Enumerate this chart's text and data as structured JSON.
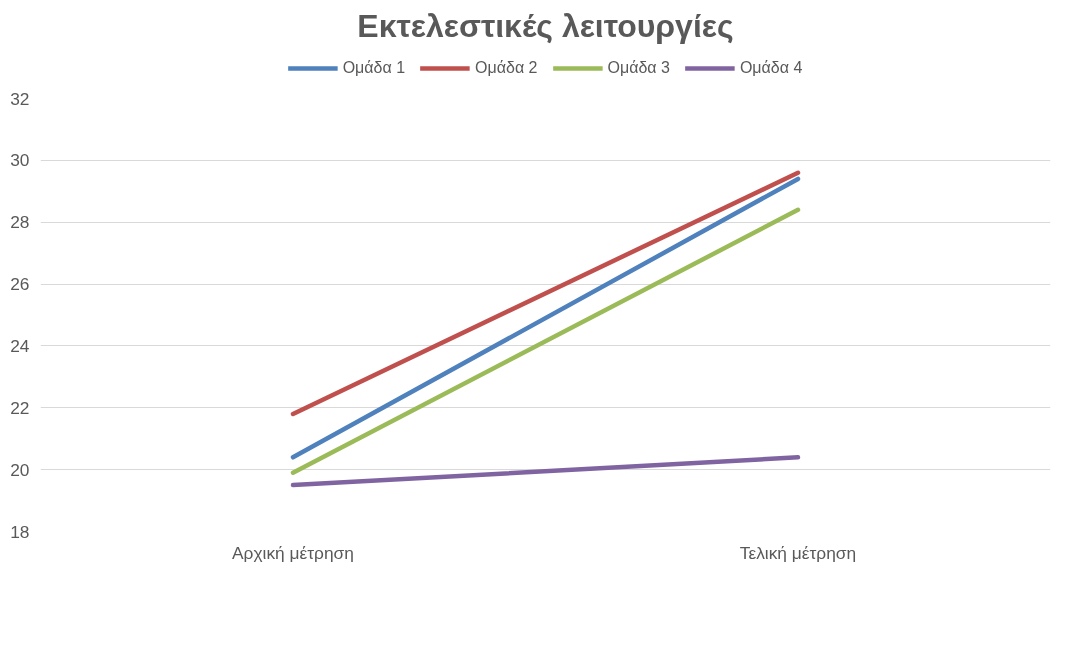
{
  "chart_data": {
    "type": "line",
    "title": "Εκτελεστικές λειτουργίες",
    "categories": [
      "Αρχική μέτρηση",
      "Τελική μέτρηση"
    ],
    "series": [
      {
        "name": "Ομάδα 1",
        "color": "#4f81bd",
        "values": [
          20.4,
          29.4
        ]
      },
      {
        "name": "Ομάδα 2",
        "color": "#c0504d",
        "values": [
          21.8,
          29.6
        ]
      },
      {
        "name": "Ομάδα 3",
        "color": "#9bbb59",
        "values": [
          19.9,
          28.4
        ]
      },
      {
        "name": "Ομάδα 4",
        "color": "#8064a2",
        "values": [
          19.5,
          20.4
        ]
      }
    ],
    "ylim": [
      18,
      32
    ],
    "yticks": [
      18,
      20,
      22,
      24,
      26,
      28,
      30,
      32
    ],
    "grid": "y",
    "legend": "top",
    "marker": "none",
    "line_style": "solid"
  }
}
